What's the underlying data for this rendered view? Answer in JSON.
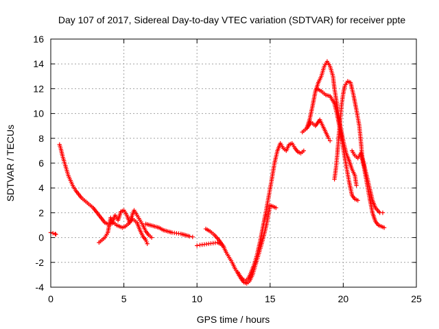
{
  "chart_data": {
    "type": "scatter",
    "title": "Day 107 of 2017, Sidereal Day-to-day VTEC variation (SDTVAR) for receiver ppte",
    "xlabel": "GPS time / hours",
    "ylabel": "SDTVAR / TECUs",
    "xlim": [
      0,
      25
    ],
    "ylim": [
      -4,
      16
    ],
    "xticks": [
      0,
      5,
      10,
      15,
      20,
      25
    ],
    "yticks": [
      -4,
      -2,
      0,
      2,
      4,
      6,
      8,
      10,
      12,
      14,
      16
    ],
    "grid": true,
    "legend": "none",
    "marker": "+",
    "color": "#ff0000",
    "series": [
      {
        "points": [
          [
            0.0,
            0.4
          ],
          [
            0.15,
            0.35
          ],
          [
            0.3,
            0.3
          ],
          [
            0.35,
            0.25
          ]
        ]
      },
      {
        "points": [
          [
            0.6,
            7.5
          ],
          [
            0.7,
            7.1
          ],
          [
            0.8,
            6.6
          ],
          [
            0.9,
            6.2
          ],
          [
            1.0,
            5.8
          ],
          [
            1.1,
            5.4
          ],
          [
            1.2,
            5.0
          ],
          [
            1.35,
            4.6
          ],
          [
            1.5,
            4.2
          ],
          [
            1.7,
            3.8
          ],
          [
            1.9,
            3.5
          ],
          [
            2.1,
            3.2
          ],
          [
            2.3,
            3.0
          ],
          [
            2.5,
            2.8
          ],
          [
            2.7,
            2.6
          ],
          [
            2.9,
            2.4
          ],
          [
            3.1,
            2.1
          ],
          [
            3.3,
            1.8
          ],
          [
            3.5,
            1.5
          ],
          [
            3.7,
            1.2
          ],
          [
            3.9,
            1.1
          ],
          [
            4.1,
            1.1
          ],
          [
            4.3,
            1.2
          ],
          [
            4.5,
            1.0
          ],
          [
            4.7,
            0.9
          ],
          [
            4.9,
            0.8
          ],
          [
            5.1,
            0.9
          ],
          [
            5.3,
            1.1
          ],
          [
            5.6,
            1.5
          ],
          [
            5.9,
            1.2
          ],
          [
            6.1,
            0.6
          ],
          [
            6.3,
            0.1
          ],
          [
            6.5,
            -0.2
          ],
          [
            6.6,
            -0.5
          ]
        ]
      },
      {
        "points": [
          [
            3.3,
            -0.4
          ],
          [
            3.5,
            -0.2
          ],
          [
            3.7,
            0.0
          ],
          [
            3.9,
            0.4
          ],
          [
            4.0,
            1.0
          ],
          [
            4.1,
            1.6
          ],
          [
            4.2,
            1.2
          ],
          [
            4.4,
            1.8
          ],
          [
            4.6,
            1.4
          ],
          [
            4.8,
            2.1
          ],
          [
            5.0,
            2.2
          ],
          [
            5.2,
            1.8
          ],
          [
            5.4,
            1.2
          ],
          [
            5.5,
            1.6
          ],
          [
            5.7,
            2.2
          ],
          [
            5.9,
            1.8
          ],
          [
            6.1,
            1.4
          ],
          [
            6.3,
            1.0
          ],
          [
            6.5,
            0.5
          ],
          [
            6.7,
            0.2
          ],
          [
            6.9,
            0.0
          ]
        ]
      },
      {
        "points": [
          [
            6.5,
            1.1
          ],
          [
            6.8,
            1.0
          ],
          [
            7.1,
            0.9
          ],
          [
            7.4,
            0.8
          ],
          [
            7.7,
            0.6
          ],
          [
            8.0,
            0.5
          ],
          [
            8.3,
            0.4
          ],
          [
            8.6,
            0.35
          ],
          [
            8.9,
            0.3
          ],
          [
            9.2,
            0.2
          ],
          [
            9.5,
            0.1
          ],
          [
            9.7,
            0.05
          ]
        ]
      },
      {
        "points": [
          [
            10.0,
            -0.65
          ],
          [
            10.2,
            -0.6
          ],
          [
            10.5,
            -0.55
          ],
          [
            10.8,
            -0.5
          ],
          [
            11.1,
            -0.45
          ],
          [
            11.4,
            -0.4
          ],
          [
            11.6,
            -0.5
          ],
          [
            11.8,
            -0.7
          ]
        ]
      },
      {
        "points": [
          [
            10.6,
            0.7
          ],
          [
            10.9,
            0.5
          ],
          [
            11.2,
            0.2
          ],
          [
            11.5,
            -0.2
          ],
          [
            11.8,
            -0.7
          ],
          [
            12.0,
            -1.2
          ],
          [
            12.2,
            -1.6
          ],
          [
            12.4,
            -2.0
          ],
          [
            12.6,
            -2.5
          ],
          [
            12.8,
            -2.9
          ],
          [
            13.0,
            -3.3
          ],
          [
            13.2,
            -3.6
          ],
          [
            13.4,
            -3.7
          ],
          [
            13.6,
            -3.5
          ],
          [
            13.8,
            -3.0
          ],
          [
            14.0,
            -2.2
          ],
          [
            14.2,
            -1.4
          ],
          [
            14.4,
            -0.6
          ],
          [
            14.6,
            0.3
          ],
          [
            14.8,
            1.3
          ],
          [
            15.0,
            2.6
          ],
          [
            15.2,
            2.5
          ],
          [
            15.4,
            2.4
          ]
        ]
      },
      {
        "points": [
          [
            12.8,
            -2.8
          ],
          [
            13.0,
            -3.2
          ],
          [
            13.3,
            -3.5
          ],
          [
            13.5,
            -3.3
          ],
          [
            13.7,
            -2.8
          ],
          [
            13.9,
            -2.2
          ],
          [
            14.1,
            -1.4
          ],
          [
            14.3,
            -0.4
          ],
          [
            14.5,
            0.8
          ],
          [
            14.7,
            2.0
          ],
          [
            14.9,
            3.3
          ],
          [
            15.1,
            4.6
          ],
          [
            15.3,
            6.0
          ],
          [
            15.5,
            7.0
          ],
          [
            15.7,
            7.6
          ],
          [
            15.9,
            7.2
          ],
          [
            16.1,
            7.0
          ],
          [
            16.3,
            7.5
          ],
          [
            16.5,
            7.6
          ],
          [
            16.7,
            7.2
          ],
          [
            16.9,
            6.9
          ],
          [
            17.1,
            6.8
          ],
          [
            17.3,
            7.0
          ]
        ]
      },
      {
        "points": [
          [
            17.2,
            8.5
          ],
          [
            17.5,
            8.8
          ],
          [
            17.8,
            9.3
          ],
          [
            18.1,
            9.0
          ],
          [
            18.4,
            9.5
          ],
          [
            18.6,
            9.0
          ],
          [
            18.8,
            8.5
          ],
          [
            19.0,
            8.0
          ],
          [
            19.1,
            7.8
          ]
        ]
      },
      {
        "points": [
          [
            17.5,
            8.8
          ],
          [
            17.7,
            9.5
          ],
          [
            17.9,
            10.6
          ],
          [
            18.1,
            11.8
          ],
          [
            18.3,
            12.5
          ],
          [
            18.5,
            13.0
          ],
          [
            18.7,
            13.8
          ],
          [
            18.9,
            14.2
          ],
          [
            19.1,
            13.8
          ],
          [
            19.3,
            13.0
          ],
          [
            19.4,
            12.0
          ],
          [
            19.6,
            10.5
          ],
          [
            19.8,
            9.0
          ],
          [
            20.0,
            7.8
          ],
          [
            20.2,
            6.8
          ],
          [
            20.4,
            6.2
          ],
          [
            20.6,
            5.5
          ],
          [
            20.8,
            5.0
          ],
          [
            20.9,
            4.2
          ]
        ]
      },
      {
        "points": [
          [
            18.2,
            12.0
          ],
          [
            18.5,
            11.8
          ],
          [
            18.8,
            11.5
          ],
          [
            19.1,
            11.4
          ],
          [
            19.4,
            10.8
          ],
          [
            19.6,
            9.8
          ],
          [
            19.8,
            8.6
          ],
          [
            20.0,
            7.2
          ],
          [
            20.2,
            5.8
          ],
          [
            20.4,
            4.5
          ],
          [
            20.6,
            3.4
          ],
          [
            20.8,
            3.1
          ],
          [
            21.0,
            3.0
          ]
        ]
      },
      {
        "points": [
          [
            19.4,
            4.7
          ],
          [
            19.5,
            5.6
          ],
          [
            19.6,
            6.8
          ],
          [
            19.7,
            8.3
          ],
          [
            19.8,
            9.6
          ],
          [
            19.9,
            10.8
          ],
          [
            20.0,
            11.6
          ],
          [
            20.1,
            12.2
          ],
          [
            20.3,
            12.6
          ],
          [
            20.5,
            12.5
          ],
          [
            20.7,
            11.5
          ],
          [
            20.9,
            10.3
          ],
          [
            21.1,
            9.0
          ],
          [
            21.2,
            7.8
          ],
          [
            21.3,
            6.5
          ],
          [
            21.5,
            5.5
          ],
          [
            21.7,
            4.5
          ],
          [
            21.9,
            3.5
          ],
          [
            22.0,
            3.0
          ],
          [
            22.2,
            2.4
          ],
          [
            22.5,
            2.0
          ],
          [
            22.7,
            2.0
          ]
        ]
      },
      {
        "points": [
          [
            20.6,
            7.0
          ],
          [
            20.8,
            6.6
          ],
          [
            21.0,
            6.4
          ],
          [
            21.2,
            6.8
          ],
          [
            21.4,
            5.8
          ],
          [
            21.6,
            4.5
          ],
          [
            21.8,
            3.2
          ],
          [
            22.0,
            2.0
          ],
          [
            22.2,
            1.3
          ],
          [
            22.4,
            1.0
          ],
          [
            22.6,
            0.9
          ],
          [
            22.8,
            0.8
          ]
        ]
      }
    ]
  }
}
